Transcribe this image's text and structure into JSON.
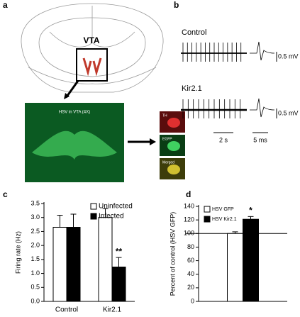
{
  "panels": {
    "a": {
      "label": "a",
      "region": "VTA",
      "image_caption": "HSV in VTA (4X)",
      "insets": [
        "TH",
        "EGFP",
        "Merged"
      ]
    },
    "b": {
      "label": "b",
      "traces": [
        "Control",
        "Kir2.1"
      ],
      "amplitude_scales": [
        "0.5 mV",
        "0.5 mV"
      ],
      "time_scales": [
        "2 s",
        "5 ms"
      ]
    }
  },
  "chart_data": [
    {
      "type": "bar",
      "panel": "c",
      "ylabel": "Firing rate (Hz)",
      "categories": [
        "Control",
        "Kir2.1"
      ],
      "series": [
        {
          "name": "Uninfected",
          "color": "#ffffff",
          "values": [
            2.65,
            3.0
          ],
          "errors": [
            0.43,
            0.32
          ]
        },
        {
          "name": "Infected",
          "color": "#000000",
          "values": [
            2.65,
            1.23
          ],
          "errors": [
            0.47,
            0.34
          ]
        }
      ],
      "ylim": [
        0,
        3.5
      ],
      "yticks": [
        {
          "value": 0,
          "label": "0.0"
        },
        0.5,
        {
          "value": 1,
          "label": "1.0"
        },
        1.5,
        {
          "value": 2,
          "label": "2.0"
        },
        2.5,
        {
          "value": 3,
          "label": "3.0"
        },
        3.5
      ],
      "legend": "upper right",
      "annotations": [
        {
          "text": "**",
          "series": 1,
          "index": 1
        }
      ]
    },
    {
      "type": "bar",
      "panel": "d",
      "ylabel": "Percent of control (HSV GFP)",
      "categories": [
        null
      ],
      "series": [
        {
          "name": "HSV GFP",
          "color": "#ffffff",
          "values": [
            100
          ],
          "errors": [
            2.5
          ]
        },
        {
          "name": "HSV Kir2.1",
          "color": "#000000",
          "values": [
            121
          ],
          "errors": [
            4
          ]
        }
      ],
      "ylim": [
        0,
        140
      ],
      "yticks": [
        0,
        20,
        40,
        60,
        80,
        100,
        120,
        140
      ],
      "hline": 100,
      "legend": "upper left",
      "annotations": [
        {
          "text": "*",
          "series": 1,
          "index": 0
        }
      ]
    }
  ]
}
